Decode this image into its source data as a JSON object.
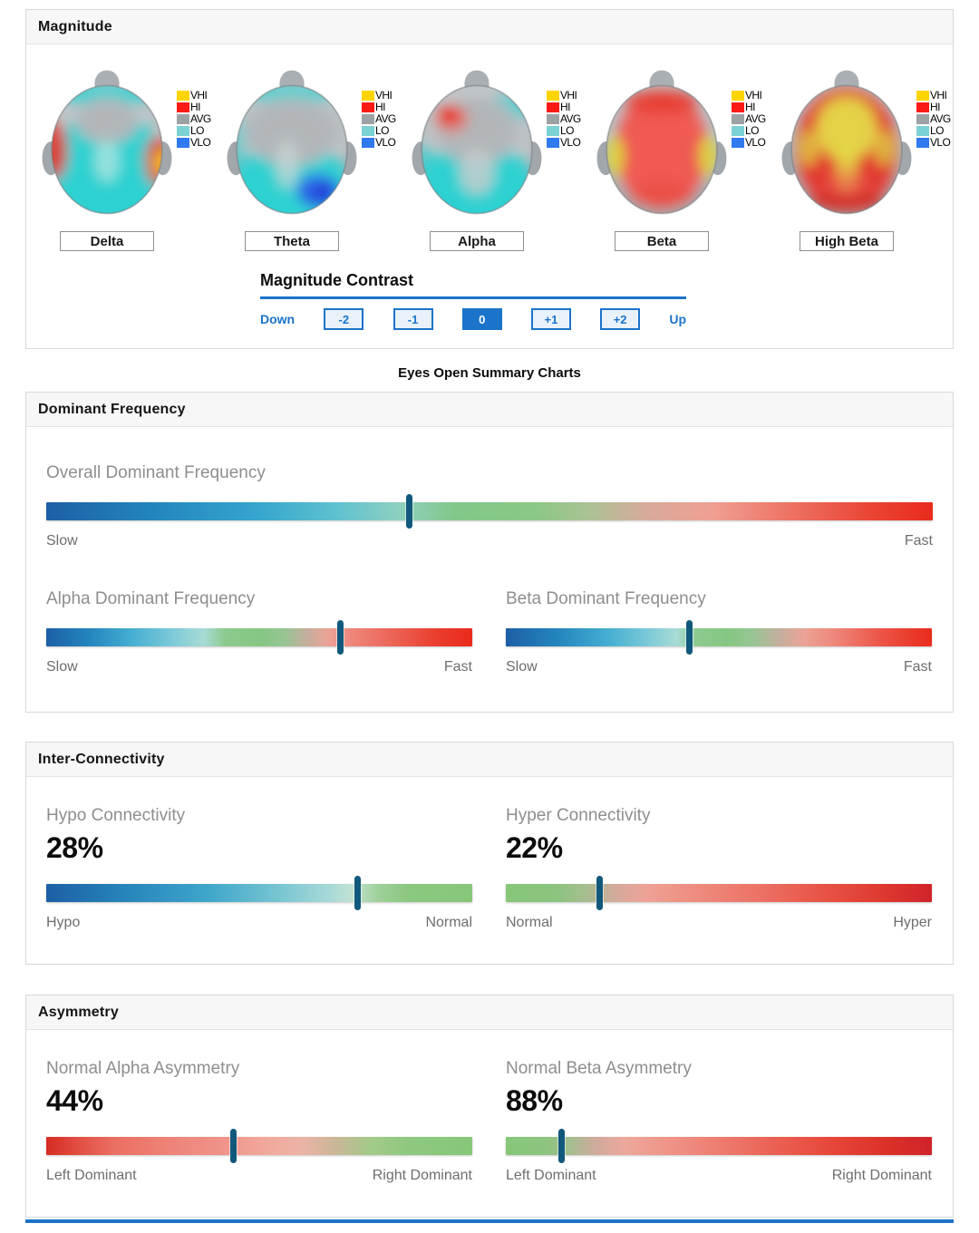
{
  "magnitude_panel": {
    "title": "Magnitude",
    "legend_items": [
      {
        "label": "VHI",
        "color": "#ffd400"
      },
      {
        "label": "HI",
        "color": "#fa1b15"
      },
      {
        "label": "AVG",
        "color": "#9ca1a4"
      },
      {
        "label": "LO",
        "color": "#7bd2d4"
      },
      {
        "label": "VLO",
        "color": "#3079ef"
      }
    ],
    "bands": [
      "Delta",
      "Theta",
      "Alpha",
      "Beta",
      "High Beta"
    ],
    "contrast": {
      "title": "Magnitude Contrast",
      "buttons": [
        {
          "label": "Down",
          "style": "link",
          "selected": false
        },
        {
          "label": "-2",
          "style": "box",
          "selected": false
        },
        {
          "label": "-1",
          "style": "box",
          "selected": false
        },
        {
          "label": "0",
          "style": "box",
          "selected": true
        },
        {
          "label": "+1",
          "style": "box",
          "selected": false
        },
        {
          "label": "+2",
          "style": "box",
          "selected": false
        },
        {
          "label": "Up",
          "style": "link",
          "selected": false
        }
      ]
    }
  },
  "summary_title": "Eyes Open Summary Charts",
  "dominant_frequency": {
    "title": "Dominant Frequency",
    "sliders": [
      {
        "label": "Overall Dominant Frequency",
        "left": "Slow",
        "right": "Fast",
        "marker_pct": 41,
        "stops": [
          [
            0,
            "#1d5fa6"
          ],
          [
            12,
            "#2385bd"
          ],
          [
            24,
            "#35a6ce"
          ],
          [
            33,
            "#61c2cf"
          ],
          [
            40,
            "#8fd0c0"
          ],
          [
            46,
            "#82c88a"
          ],
          [
            55,
            "#8ac885"
          ],
          [
            61,
            "#aac294"
          ],
          [
            68,
            "#d9a99a"
          ],
          [
            75,
            "#efa093"
          ],
          [
            84,
            "#ed7263"
          ],
          [
            93,
            "#ea4434"
          ],
          [
            100,
            "#e92b1c"
          ]
        ]
      },
      {
        "label": "Alpha Dominant Frequency",
        "left": "Slow",
        "right": "Fast",
        "marker_pct": 69,
        "stops": [
          [
            0,
            "#1d5fa6"
          ],
          [
            10,
            "#2385bd"
          ],
          [
            20,
            "#45aed2"
          ],
          [
            30,
            "#7fcbd8"
          ],
          [
            37,
            "#a8dbd5"
          ],
          [
            42,
            "#8cca8e"
          ],
          [
            50,
            "#84c782"
          ],
          [
            56,
            "#98c593"
          ],
          [
            61,
            "#c3af9d"
          ],
          [
            66,
            "#eba396"
          ],
          [
            72,
            "#ee8579"
          ],
          [
            82,
            "#ec6153"
          ],
          [
            92,
            "#ea3c2d"
          ],
          [
            100,
            "#e92b1c"
          ]
        ]
      },
      {
        "label": "Beta Dominant Frequency",
        "left": "Slow",
        "right": "Fast",
        "marker_pct": 43,
        "stops": [
          [
            0,
            "#1d5fa6"
          ],
          [
            12,
            "#2385bd"
          ],
          [
            24,
            "#45aed2"
          ],
          [
            34,
            "#7fcbd8"
          ],
          [
            40,
            "#a8dbd5"
          ],
          [
            45,
            "#8cca8e"
          ],
          [
            52,
            "#84c782"
          ],
          [
            58,
            "#98c593"
          ],
          [
            64,
            "#c3af9d"
          ],
          [
            70,
            "#eba396"
          ],
          [
            78,
            "#ee8377"
          ],
          [
            88,
            "#ec5446"
          ],
          [
            100,
            "#e92b1c"
          ]
        ]
      }
    ]
  },
  "inter_connectivity": {
    "title": "Inter-Connectivity",
    "sliders": [
      {
        "label": "Hypo Connectivity",
        "value": "28%",
        "left": "Hypo",
        "right": "Normal",
        "marker_pct": 73,
        "stops": [
          [
            0,
            "#1d5fa6"
          ],
          [
            18,
            "#2684ba"
          ],
          [
            38,
            "#3fa6cb"
          ],
          [
            55,
            "#79c6d2"
          ],
          [
            66,
            "#a6d8d8"
          ],
          [
            72,
            "#c2e2d2"
          ],
          [
            78,
            "#9ed099"
          ],
          [
            85,
            "#8bc880"
          ],
          [
            100,
            "#87c77a"
          ]
        ]
      },
      {
        "label": "Hyper Connectivity",
        "value": "22%",
        "left": "Normal",
        "right": "Hyper",
        "marker_pct": 22,
        "stops": [
          [
            0,
            "#87c77a"
          ],
          [
            12,
            "#8bc47e"
          ],
          [
            19,
            "#a8bd90"
          ],
          [
            26,
            "#d4aa9b"
          ],
          [
            33,
            "#efa296"
          ],
          [
            45,
            "#ee8b7e"
          ],
          [
            60,
            "#ec7164"
          ],
          [
            75,
            "#e85245"
          ],
          [
            88,
            "#de3a30"
          ],
          [
            100,
            "#d0232a"
          ]
        ]
      }
    ]
  },
  "asymmetry": {
    "title": "Asymmetry",
    "sliders": [
      {
        "label": "Normal Alpha Asymmetry",
        "value": "44%",
        "left": "Left Dominant",
        "right": "Right Dominant",
        "marker_pct": 44,
        "stops": [
          [
            0,
            "#d62a22"
          ],
          [
            7,
            "#e14c40"
          ],
          [
            16,
            "#ea6f62"
          ],
          [
            28,
            "#ee8276"
          ],
          [
            40,
            "#ef9187"
          ],
          [
            52,
            "#f1a99d"
          ],
          [
            60,
            "#ecb4a5"
          ],
          [
            68,
            "#c9b697"
          ],
          [
            76,
            "#a3ca88"
          ],
          [
            86,
            "#8dc87e"
          ],
          [
            100,
            "#87c77a"
          ]
        ]
      },
      {
        "label": "Normal Beta Asymmetry",
        "value": "88%",
        "left": "Left Dominant",
        "right": "Right Dominant",
        "marker_pct": 13,
        "stops": [
          [
            0,
            "#87c77a"
          ],
          [
            9,
            "#8bc47e"
          ],
          [
            15,
            "#a3be8f"
          ],
          [
            21,
            "#cfab9c"
          ],
          [
            28,
            "#eda89c"
          ],
          [
            38,
            "#ef9488"
          ],
          [
            50,
            "#ed7d70"
          ],
          [
            64,
            "#ea5f51"
          ],
          [
            78,
            "#e64437"
          ],
          [
            90,
            "#da3028"
          ],
          [
            100,
            "#d0232a"
          ]
        ]
      }
    ]
  },
  "colors": {
    "accent_blue": "#1b74c9",
    "marker": "#11597c"
  },
  "chart_data": [
    {
      "type": "heatmap",
      "subtype": "brain-topography",
      "title": "Magnitude",
      "maps": [
        "Delta",
        "Theta",
        "Alpha",
        "Beta",
        "High Beta"
      ],
      "legend": [
        "VHI",
        "HI",
        "AVG",
        "LO",
        "VLO"
      ],
      "map_summary": {
        "Delta": "mostly LO (cyan), AVG frontal, HI (red) left and right temporal with VHI (yellow) core right",
        "Theta": "AVG frontal half, LO posterior, VLO (blue) right-posterior",
        "Alpha": "AVG frontal, LO posterior, HI (red) spot left-frontal",
        "Beta": "HI (red) over most of scalp with VHI (yellow) at both temporal sides",
        "High Beta": "HI (red) overall with large VHI (yellow) fronto-central region"
      }
    },
    {
      "type": "gauge",
      "title": "Overall Dominant Frequency",
      "scale": [
        "Slow",
        "Fast"
      ],
      "marker_position_pct": 41
    },
    {
      "type": "gauge",
      "title": "Alpha Dominant Frequency",
      "scale": [
        "Slow",
        "Fast"
      ],
      "marker_position_pct": 69
    },
    {
      "type": "gauge",
      "title": "Beta Dominant Frequency",
      "scale": [
        "Slow",
        "Fast"
      ],
      "marker_position_pct": 43
    },
    {
      "type": "gauge",
      "title": "Hypo Connectivity",
      "value_pct": 28,
      "scale": [
        "Hypo",
        "Normal"
      ],
      "marker_position_pct": 73
    },
    {
      "type": "gauge",
      "title": "Hyper Connectivity",
      "value_pct": 22,
      "scale": [
        "Normal",
        "Hyper"
      ],
      "marker_position_pct": 22
    },
    {
      "type": "gauge",
      "title": "Normal Alpha Asymmetry",
      "value_pct": 44,
      "scale": [
        "Left Dominant",
        "Right Dominant"
      ],
      "marker_position_pct": 44
    },
    {
      "type": "gauge",
      "title": "Normal Beta Asymmetry",
      "value_pct": 88,
      "scale": [
        "Left Dominant",
        "Right Dominant"
      ],
      "marker_position_pct": 13
    }
  ]
}
